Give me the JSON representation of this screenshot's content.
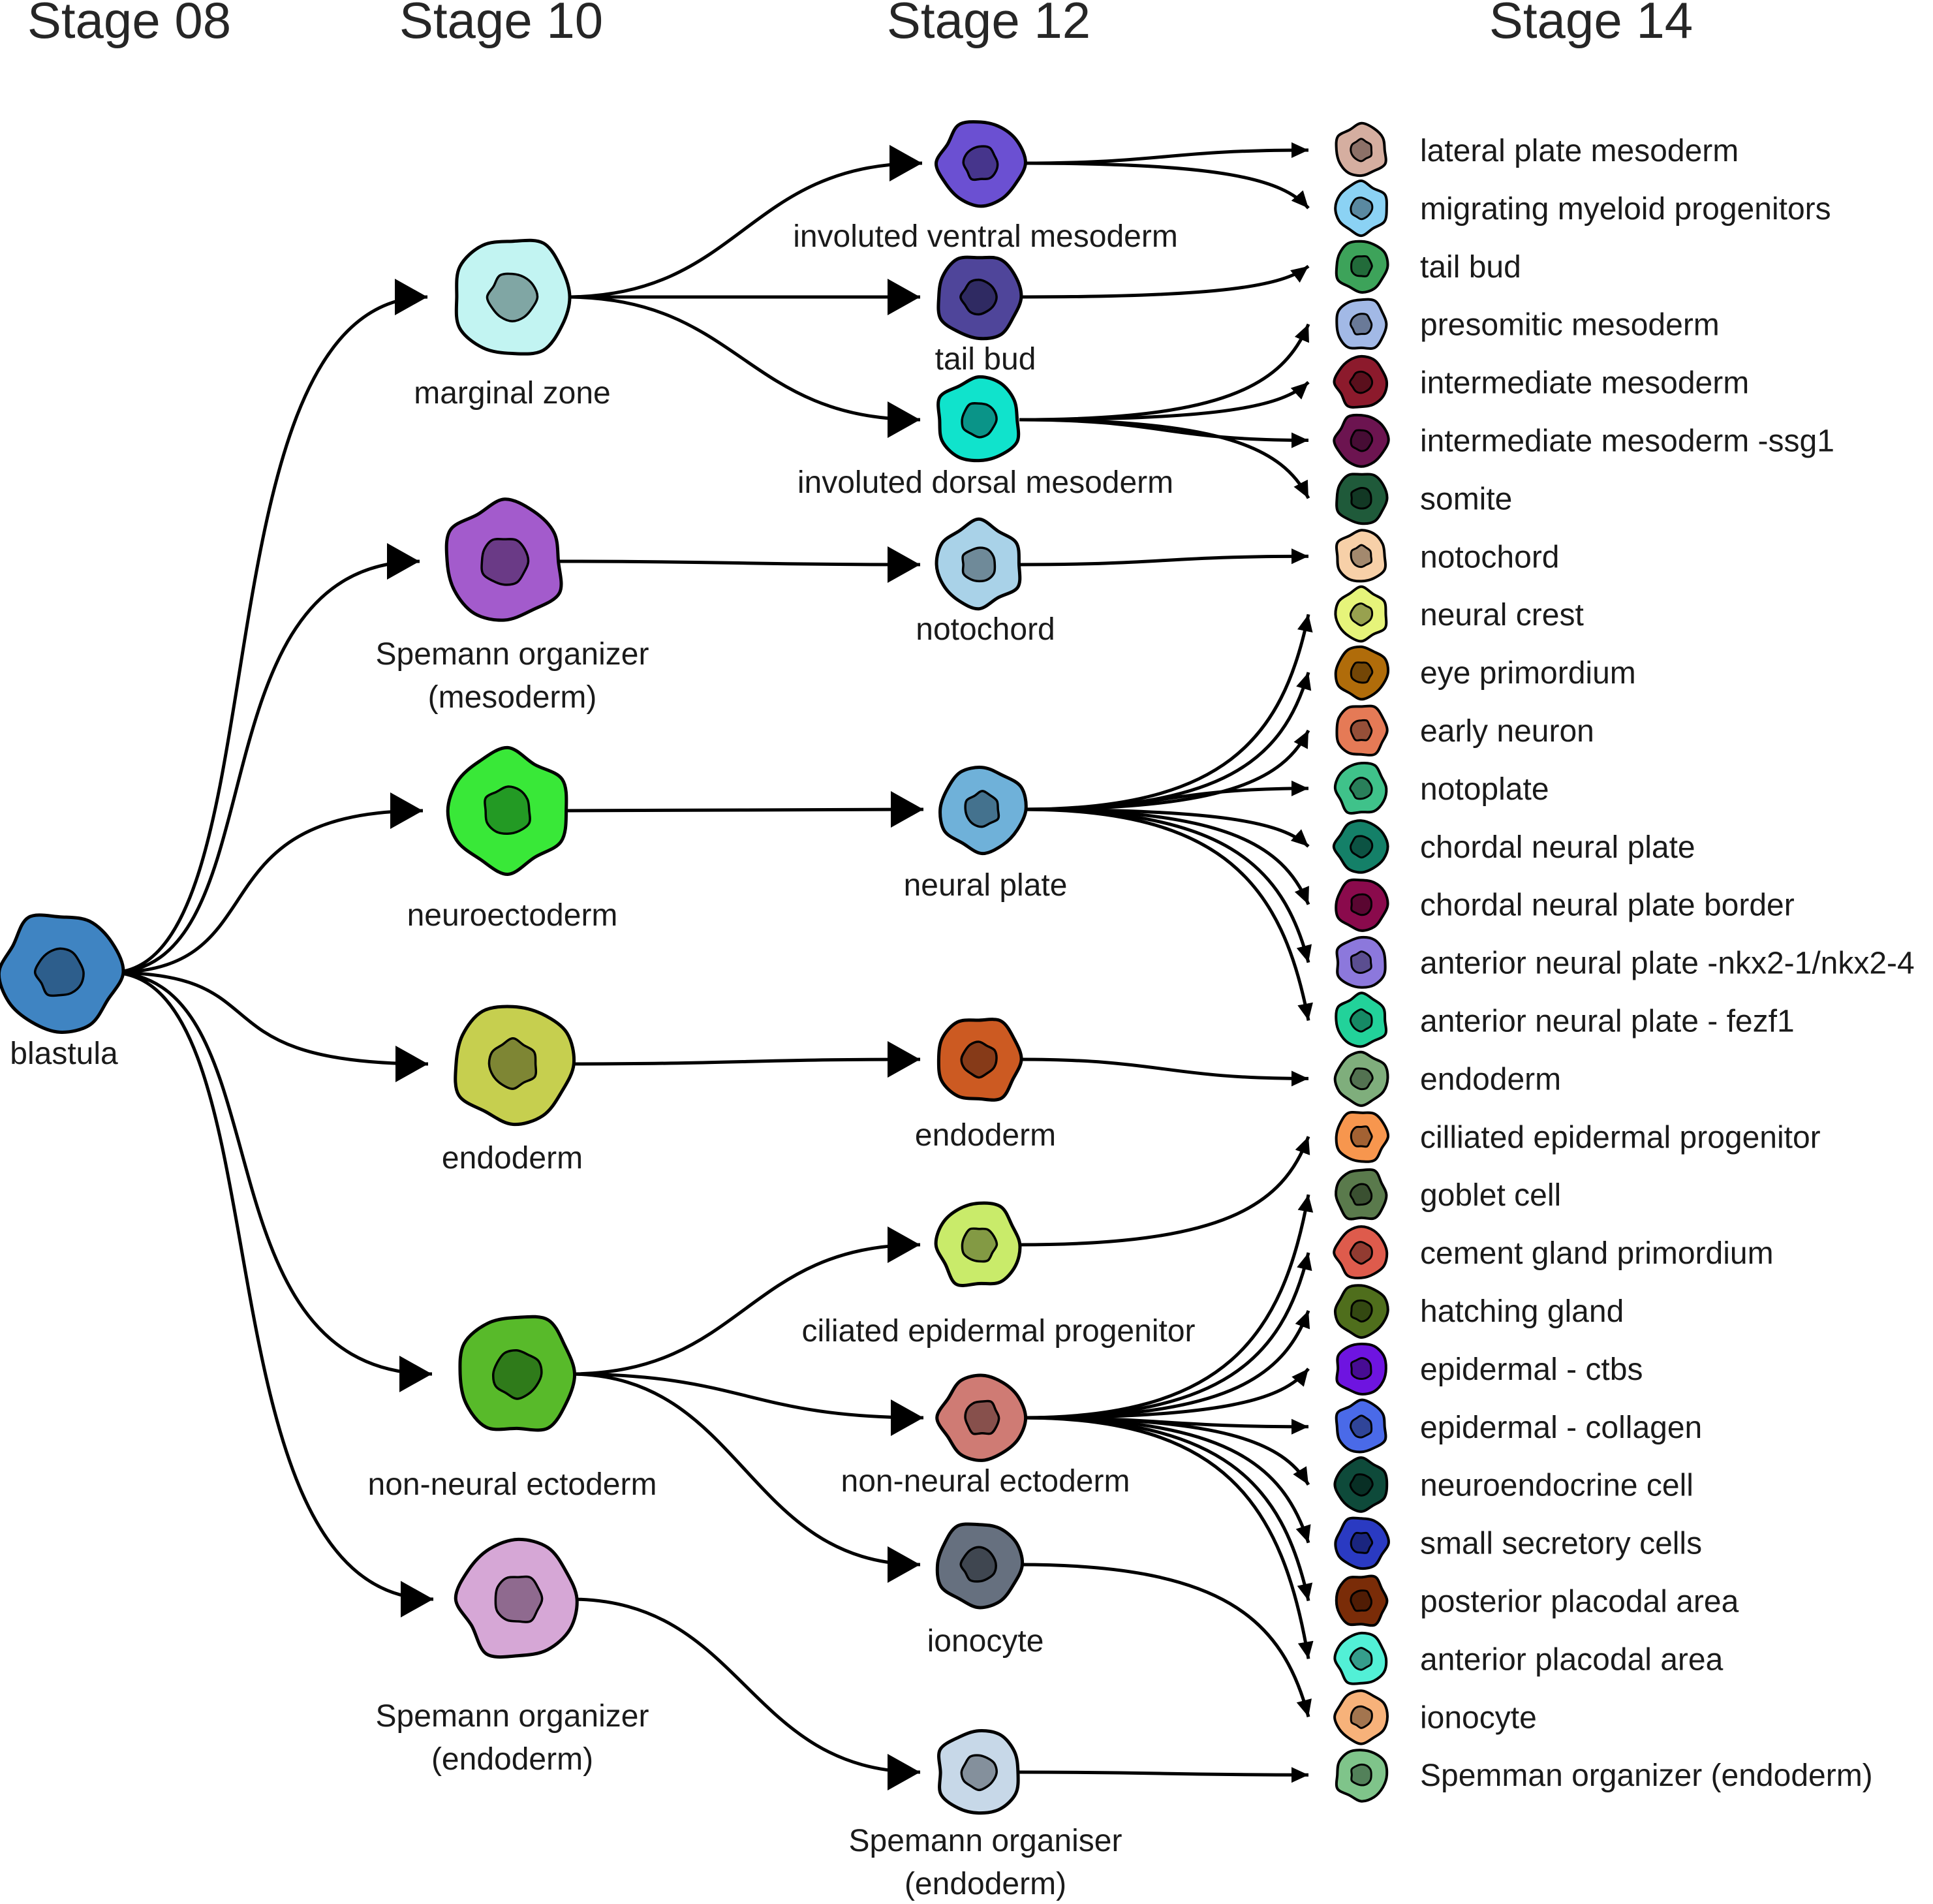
{
  "stages": [
    {
      "id": "s08",
      "label": "Stage 08"
    },
    {
      "id": "s10",
      "label": "Stage 10"
    },
    {
      "id": "s12",
      "label": "Stage 12"
    },
    {
      "id": "s14",
      "label": "Stage 14"
    }
  ],
  "cells": [
    {
      "id": "blastula",
      "stage": "s08",
      "label": [
        "blastula"
      ],
      "color": "#3f84c2",
      "nucleus": "#2d5e8c"
    },
    {
      "id": "marginal_zone",
      "stage": "s10",
      "label": [
        "marginal zone"
      ],
      "color": "#c2f4f2",
      "nucleus": "#80a6a4"
    },
    {
      "id": "spemann_meso",
      "stage": "s10",
      "label": [
        "Spemann organizer",
        "(mesoderm)"
      ],
      "color": "#a35bcc",
      "nucleus": "#6a3a86"
    },
    {
      "id": "neuroectoderm",
      "stage": "s10",
      "label": [
        "neuroectoderm"
      ],
      "color": "#39e838",
      "nucleus": "#239a24"
    },
    {
      "id": "endoderm10",
      "stage": "s10",
      "label": [
        "endoderm"
      ],
      "color": "#c6cf4f",
      "nucleus": "#7e8634"
    },
    {
      "id": "nonneural10",
      "stage": "s10",
      "label": [
        "non-neural ectoderm"
      ],
      "color": "#58ba2a",
      "nucleus": "#2f7b1a"
    },
    {
      "id": "spemann_endo10",
      "stage": "s10",
      "label": [
        "Spemann organizer",
        "(endoderm)"
      ],
      "color": "#d6a7d6",
      "nucleus": "#8f6a8f"
    },
    {
      "id": "inv_ventral",
      "stage": "s12",
      "label": [
        "involuted ventral mesoderm"
      ],
      "color": "#6b50d2",
      "nucleus": "#46358c"
    },
    {
      "id": "tailbud12",
      "stage": "s12",
      "label": [
        "tail bud"
      ],
      "color": "#4f459a",
      "nucleus": "#2f2a62"
    },
    {
      "id": "inv_dorsal",
      "stage": "s12",
      "label": [
        "involuted dorsal mesoderm"
      ],
      "color": "#10e3cc",
      "nucleus": "#0a9488"
    },
    {
      "id": "notochord12",
      "stage": "s12",
      "label": [
        "notochord"
      ],
      "color": "#a9d2e8",
      "nucleus": "#6f8a99"
    },
    {
      "id": "neuralplate12",
      "stage": "s12",
      "label": [
        "neural plate"
      ],
      "color": "#6fb1d9",
      "nucleus": "#44728e"
    },
    {
      "id": "endoderm12",
      "stage": "s12",
      "label": [
        "endoderm"
      ],
      "color": "#cc5a22",
      "nucleus": "#863a18"
    },
    {
      "id": "ciliated12",
      "stage": "s12",
      "label": [
        "ciliated epidermal progenitor"
      ],
      "color": "#c9eb6a",
      "nucleus": "#839a44"
    },
    {
      "id": "nonneural12",
      "stage": "s12",
      "label": [
        "non-neural ectoderm"
      ],
      "color": "#cf7b74",
      "nucleus": "#87504c"
    },
    {
      "id": "ionocyte12",
      "stage": "s12",
      "label": [
        "ionocyte"
      ],
      "color": "#66707f",
      "nucleus": "#3f4650"
    },
    {
      "id": "spemann_endo12",
      "stage": "s12",
      "label": [
        "Spemann organiser",
        "(endoderm)"
      ],
      "color": "#c7d8e8",
      "nucleus": "#84909c"
    }
  ],
  "legend": [
    {
      "label": "lateral plate mesoderm",
      "color": "#d5aea0",
      "nucleus": "#8d7168"
    },
    {
      "label": "migrating myeloid progenitors",
      "color": "#8bd2f4",
      "nucleus": "#5a89a1"
    },
    {
      "label": "tail bud",
      "color": "#3da35a",
      "nucleus": "#226b3a"
    },
    {
      "label": "presomitic mesoderm",
      "color": "#a2b9e6",
      "nucleus": "#6a7a98"
    },
    {
      "label": "intermediate mesoderm",
      "color": "#8c1a2c",
      "nucleus": "#5a0f1c"
    },
    {
      "label": "intermediate mesoderm -ssg1",
      "color": "#6c1450",
      "nucleus": "#460c34"
    },
    {
      "label": "somite",
      "color": "#1f5a3a",
      "nucleus": "#123824"
    },
    {
      "label": "notochord",
      "color": "#f7d0a8",
      "nucleus": "#a3896e"
    },
    {
      "label": "neural crest",
      "color": "#e6f47a",
      "nucleus": "#98a14f"
    },
    {
      "label": "eye primordium",
      "color": "#b06c0a",
      "nucleus": "#734606"
    },
    {
      "label": "early neuron",
      "color": "#e57a56",
      "nucleus": "#964f38"
    },
    {
      "label": "notoplate",
      "color": "#3fc28a",
      "nucleus": "#297f5a"
    },
    {
      "label": "chordal neural plate",
      "color": "#148068",
      "nucleus": "#0c5343"
    },
    {
      "label": "chordal neural plate border",
      "color": "#8a0a4c",
      "nucleus": "#5a0631"
    },
    {
      "label": "anterior neural plate -nkx2-1/nkx2-4",
      "color": "#8c78dc",
      "nucleus": "#5b4e90"
    },
    {
      "label": "anterior neural plate - fezf1",
      "color": "#22d29a",
      "nucleus": "#168a65"
    },
    {
      "label": "endoderm",
      "color": "#7fae7c",
      "nucleus": "#537251"
    },
    {
      "label": "cilliated epidermal progenitor",
      "color": "#f7964e",
      "nucleus": "#a36233"
    },
    {
      "label": "goblet cell",
      "color": "#5a7a4c",
      "nucleus": "#3a5031"
    },
    {
      "label": "cement gland primordium",
      "color": "#de5b4c",
      "nucleus": "#923b31"
    },
    {
      "label": "hatching gland",
      "color": "#4f6e1c",
      "nucleus": "#334811"
    },
    {
      "label": "epidermal - ctbs",
      "color": "#6e14e0",
      "nucleus": "#470c93"
    },
    {
      "label": "epidermal - collagen",
      "color": "#4a6ae8",
      "nucleus": "#304599"
    },
    {
      "label": "neuroendocrine cell",
      "color": "#0e4a3a",
      "nucleus": "#082f25"
    },
    {
      "label": "small secretory cells",
      "color": "#2a3ac2",
      "nucleus": "#1a257f"
    },
    {
      "label": "posterior placodal area",
      "color": "#7a2c08",
      "nucleus": "#501c04"
    },
    {
      "label": "anterior placodal area",
      "color": "#52f0d6",
      "nucleus": "#359e8c"
    },
    {
      "label": "ionocyte",
      "color": "#f7b27a",
      "nucleus": "#a3754f"
    },
    {
      "label": "Spemman organizer (endoderm)",
      "color": "#7fc48a",
      "nucleus": "#53815a"
    }
  ],
  "edges": [
    [
      "blastula",
      "marginal_zone"
    ],
    [
      "blastula",
      "spemann_meso"
    ],
    [
      "blastula",
      "neuroectoderm"
    ],
    [
      "blastula",
      "endoderm10"
    ],
    [
      "blastula",
      "nonneural10"
    ],
    [
      "blastula",
      "spemann_endo10"
    ],
    [
      "marginal_zone",
      "inv_ventral"
    ],
    [
      "marginal_zone",
      "tailbud12"
    ],
    [
      "marginal_zone",
      "inv_dorsal"
    ],
    [
      "spemann_meso",
      "notochord12"
    ],
    [
      "neuroectoderm",
      "neuralplate12"
    ],
    [
      "endoderm10",
      "endoderm12"
    ],
    [
      "nonneural10",
      "ciliated12"
    ],
    [
      "nonneural10",
      "nonneural12"
    ],
    [
      "nonneural10",
      "ionocyte12"
    ],
    [
      "spemann_endo10",
      "spemann_endo12"
    ],
    [
      "inv_ventral",
      "L0"
    ],
    [
      "inv_ventral",
      "L1"
    ],
    [
      "tailbud12",
      "L2"
    ],
    [
      "inv_dorsal",
      "L3"
    ],
    [
      "inv_dorsal",
      "L4"
    ],
    [
      "inv_dorsal",
      "L5"
    ],
    [
      "inv_dorsal",
      "L6"
    ],
    [
      "notochord12",
      "L7"
    ],
    [
      "neuralplate12",
      "L8"
    ],
    [
      "neuralplate12",
      "L9"
    ],
    [
      "neuralplate12",
      "L10"
    ],
    [
      "neuralplate12",
      "L11"
    ],
    [
      "neuralplate12",
      "L12"
    ],
    [
      "neuralplate12",
      "L13"
    ],
    [
      "neuralplate12",
      "L14"
    ],
    [
      "neuralplate12",
      "L15"
    ],
    [
      "endoderm12",
      "L16"
    ],
    [
      "ciliated12",
      "L17"
    ],
    [
      "nonneural12",
      "L18"
    ],
    [
      "nonneural12",
      "L19"
    ],
    [
      "nonneural12",
      "L20"
    ],
    [
      "nonneural12",
      "L21"
    ],
    [
      "nonneural12",
      "L22"
    ],
    [
      "nonneural12",
      "L23"
    ],
    [
      "nonneural12",
      "L24"
    ],
    [
      "nonneural12",
      "L25"
    ],
    [
      "nonneural12",
      "L26"
    ],
    [
      "ionocyte12",
      "L27"
    ],
    [
      "spemann_endo12",
      "L28"
    ]
  ]
}
